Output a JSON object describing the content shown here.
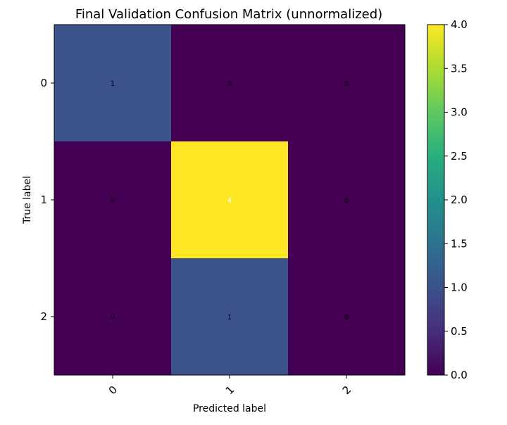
{
  "chart_data": {
    "type": "heatmap",
    "title": "Final Validation Confusion Matrix (unnormalized)",
    "xlabel": "Predicted label",
    "ylabel": "True label",
    "x_categories": [
      "0",
      "1",
      "2"
    ],
    "y_categories": [
      "0",
      "1",
      "2"
    ],
    "values": [
      [
        1,
        0,
        0
      ],
      [
        0,
        4,
        0
      ],
      [
        0,
        1,
        0
      ]
    ],
    "cell_labels": [
      [
        "1",
        "0",
        "0"
      ],
      [
        "0",
        "4",
        "0"
      ],
      [
        "0",
        "1",
        "0"
      ]
    ],
    "colormap": "viridis",
    "color_range": [
      0,
      4
    ],
    "colorbar_ticks": [
      "0.0",
      "0.5",
      "1.0",
      "1.5",
      "2.0",
      "2.5",
      "3.0",
      "3.5",
      "4.0"
    ],
    "x_tick_rotation_deg": 45,
    "grid": false,
    "colors": {
      "low": "#440154",
      "value_1": "#3b528b",
      "high": "#fde725"
    }
  }
}
